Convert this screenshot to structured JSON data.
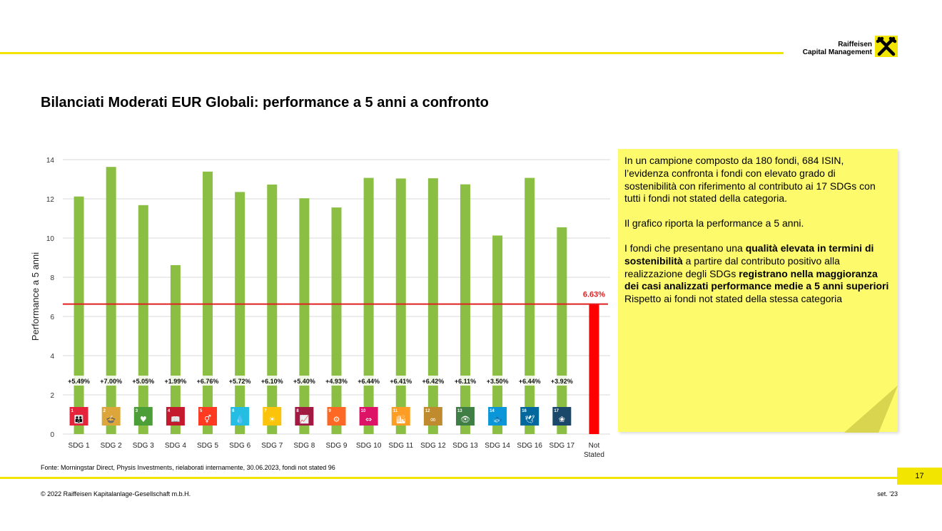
{
  "header": {
    "logo_line1": "Raiffeisen",
    "logo_line2": "Capital Management",
    "title": "Bilanciati Moderati EUR Globali: performance a 5 anni a confronto"
  },
  "colors": {
    "brand_yellow": "#f2e600",
    "bar_green": "#8bbf44",
    "not_stated_red": "#ff0000",
    "reference_line": "#e02020",
    "note_yellow": "#fdfa6c"
  },
  "chart_data": {
    "type": "bar",
    "ylabel": "Performance a 5 anni",
    "ylim": [
      0,
      14
    ],
    "yticks": [
      0,
      2,
      4,
      6,
      8,
      10,
      12,
      14
    ],
    "grid": true,
    "categories": [
      "SDG 1",
      "SDG 2",
      "SDG 3",
      "SDG 4",
      "SDG 5",
      "SDG 6",
      "SDG 7",
      "SDG 8",
      "SDG 9",
      "SDG 10",
      "SDG 11",
      "SDG 12",
      "SDG 13",
      "SDG 14",
      "SDG 16",
      "SDG 17",
      "Not Stated"
    ],
    "values": [
      12.12,
      13.63,
      11.68,
      8.62,
      13.39,
      12.35,
      12.73,
      12.03,
      11.56,
      13.07,
      13.04,
      13.05,
      12.74,
      10.13,
      13.07,
      10.55,
      6.63
    ],
    "diff_labels": [
      "+5.49%",
      "+7.00%",
      "+5.05%",
      "+1.99%",
      "+6.76%",
      "+5.72%",
      "+6.10%",
      "+5.40%",
      "+4.93%",
      "+6.44%",
      "+6.41%",
      "+6.42%",
      "+6.11%",
      "+3.50%",
      "+6.44%",
      "+3.92%"
    ],
    "reference_value": 6.63,
    "reference_label": "6.63%",
    "sdg_icons": [
      {
        "num": "1",
        "color": "#e5243b",
        "glyph": "👪"
      },
      {
        "num": "2",
        "color": "#dda63a",
        "glyph": "🍲"
      },
      {
        "num": "3",
        "color": "#4c9f38",
        "glyph": "♥"
      },
      {
        "num": "4",
        "color": "#c5192d",
        "glyph": "📖"
      },
      {
        "num": "5",
        "color": "#ff3a21",
        "glyph": "⚥"
      },
      {
        "num": "6",
        "color": "#26bde2",
        "glyph": "💧"
      },
      {
        "num": "7",
        "color": "#fcc30b",
        "glyph": "☀"
      },
      {
        "num": "8",
        "color": "#a21942",
        "glyph": "📈"
      },
      {
        "num": "9",
        "color": "#fd6925",
        "glyph": "⚙"
      },
      {
        "num": "10",
        "color": "#dd1367",
        "glyph": "⇔"
      },
      {
        "num": "11",
        "color": "#fd9d24",
        "glyph": "🏙"
      },
      {
        "num": "12",
        "color": "#bf8b2e",
        "glyph": "∞"
      },
      {
        "num": "13",
        "color": "#3f7e44",
        "glyph": "👁"
      },
      {
        "num": "14",
        "color": "#0a97d9",
        "glyph": "🐟"
      },
      {
        "num": "16",
        "color": "#00689d",
        "glyph": "🕊"
      },
      {
        "num": "17",
        "color": "#19486a",
        "glyph": "❀"
      }
    ]
  },
  "note": {
    "p1": "In un campione composto da 180 fondi, 684 ISIN, l’evidenza confronta i fondi con elevato grado di sostenibilità con riferimento al contributo ai 17 SDGs con tutti i fondi not stated della categoria.",
    "p2": "Il grafico riporta la performance a 5 anni.",
    "p3_a": "I fondi che presentano una ",
    "p3_b": "qualità elevata in termini di sostenibilità",
    "p3_c": " a partire dal contributo positivo alla realizzazione degli SDGs ",
    "p3_d": "registrano nella maggioranza dei casi analizzati performance medie a 5 anni superiori",
    "p3_e": " Rispetto ai fondi not stated della stessa categoria"
  },
  "footer": {
    "source": "Fonte: Morningstar Direct, Physis Investments, rielaborati internamente, 30.06.2023, fondi not stated 96",
    "page": "17",
    "copyright": "© 2022 Raiffeisen Kapitalanlage-Gesellschaft m.b.H.",
    "date": "set. '23"
  }
}
